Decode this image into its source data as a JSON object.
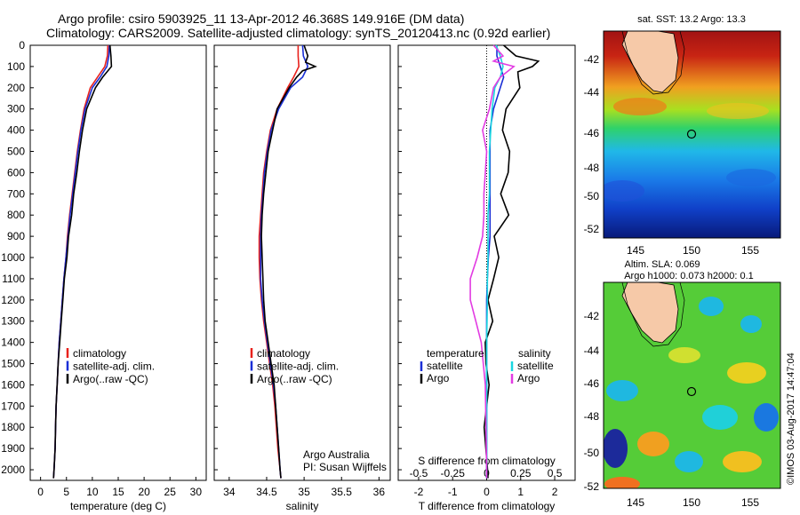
{
  "header": {
    "title_line1": "Argo profile: csiro 5903925_11 13-Apr-2012 46.368S 149.916E (DM data)",
    "title_line2": "Climatology: CARS2009. Satellite-adjusted climatology: synTS_20120413.nc (0.92d earlier)"
  },
  "maps": {
    "sst_title": "sat. SST: 13.2  Argo: 13.3",
    "sla_title1": "Altim. SLA: 0.069",
    "sla_title2": "Argo h1000: 0.073  h2000: 0.1",
    "lat_ticks": [
      "-42",
      "-44",
      "-46",
      "-48",
      "-50",
      "-52"
    ],
    "lon_ticks": [
      "145",
      "150",
      "155"
    ]
  },
  "stamp": "©IMOS 03-Aug-2017 14:47:04",
  "colors": {
    "climatology": "#e8211c",
    "satellite": "#1a2fd6",
    "argo": "#000000",
    "sal_satellite": "#19d6e0",
    "sal_argo": "#e23be2"
  },
  "chart_data": [
    {
      "type": "line",
      "xlabel": "temperature (deg C)",
      "ylabel": "",
      "xlim": [
        -2,
        32
      ],
      "ylim": [
        2050,
        0
      ],
      "xticks": [
        0,
        5,
        10,
        15,
        20,
        25,
        30
      ],
      "yticks": [
        0,
        100,
        200,
        300,
        400,
        500,
        600,
        700,
        800,
        900,
        1000,
        1100,
        1200,
        1300,
        1400,
        1500,
        1600,
        1700,
        1800,
        1900,
        2000
      ],
      "legend": [
        "climatology",
        "satellite-adj. clim.",
        "Argo(..raw -QC)"
      ],
      "series": [
        {
          "name": "climatology",
          "depth": [
            0,
            50,
            100,
            150,
            200,
            300,
            400,
            500,
            600,
            700,
            800,
            900,
            1000,
            1100,
            1200,
            1300,
            1400,
            1500,
            1600,
            1700,
            1800,
            1900,
            2000,
            2040
          ],
          "values": [
            13.0,
            12.9,
            12.4,
            11.0,
            9.6,
            8.4,
            7.7,
            7.1,
            6.6,
            6.1,
            5.6,
            5.2,
            4.9,
            4.5,
            4.2,
            3.9,
            3.6,
            3.4,
            3.2,
            3.0,
            2.9,
            2.8,
            2.6,
            2.5
          ]
        },
        {
          "name": "satellite-adj. clim.",
          "depth": [
            0,
            50,
            100,
            150,
            200,
            300,
            400,
            500,
            600,
            700,
            800,
            900,
            1000,
            1100,
            1200,
            1300,
            1400,
            1500,
            1600,
            1700,
            1800,
            1900,
            2000,
            2040
          ],
          "values": [
            13.3,
            13.2,
            12.8,
            11.5,
            10.0,
            8.6,
            7.8,
            7.2,
            6.7,
            6.2,
            5.7,
            5.3,
            4.9,
            4.5,
            4.2,
            3.9,
            3.6,
            3.4,
            3.2,
            3.0,
            2.9,
            2.8,
            2.6,
            2.5
          ]
        },
        {
          "name": "Argo(..raw -QC)",
          "depth": [
            0,
            50,
            100,
            150,
            200,
            300,
            400,
            500,
            600,
            700,
            800,
            900,
            1000,
            1100,
            1200,
            1300,
            1400,
            1500,
            1600,
            1700,
            1800,
            1900,
            2000,
            2040
          ],
          "values": [
            13.4,
            13.6,
            13.7,
            12.0,
            10.6,
            8.9,
            8.1,
            7.5,
            7.0,
            6.4,
            6.0,
            5.4,
            5.1,
            4.6,
            4.3,
            4.0,
            3.7,
            3.4,
            3.2,
            3.0,
            2.9,
            2.8,
            2.6,
            2.5
          ]
        }
      ]
    },
    {
      "type": "line",
      "xlabel": "salinity",
      "xlim": [
        33.8,
        36.15
      ],
      "ylim": [
        2050,
        0
      ],
      "xticks": [
        34,
        34.5,
        35,
        35.5,
        36
      ],
      "xticklabels": [
        "34",
        "34.5",
        "35",
        "35.5",
        "36"
      ],
      "legend": [
        "climatology",
        "satellite-adj. clim.",
        "Argo(..raw -QC)"
      ],
      "annotation": [
        "Argo Australia",
        "PI: Susan Wijffels"
      ],
      "series": [
        {
          "name": "climatology",
          "depth": [
            0,
            50,
            100,
            150,
            200,
            300,
            400,
            500,
            600,
            700,
            800,
            900,
            1000,
            1100,
            1200,
            1300,
            1400,
            1500,
            1600,
            1700,
            1800,
            1900,
            2000,
            2040
          ],
          "values": [
            34.92,
            34.92,
            34.93,
            34.86,
            34.78,
            34.64,
            34.55,
            34.5,
            34.46,
            34.44,
            34.42,
            34.4,
            34.4,
            34.41,
            34.43,
            34.46,
            34.5,
            34.54,
            34.58,
            34.61,
            34.63,
            34.65,
            34.68,
            34.69
          ]
        },
        {
          "name": "satellite-adj. clim.",
          "depth": [
            0,
            50,
            100,
            150,
            200,
            300,
            400,
            500,
            600,
            700,
            800,
            900,
            1000,
            1100,
            1200,
            1300,
            1400,
            1500,
            1600,
            1700,
            1800,
            1900,
            2000,
            2040
          ],
          "values": [
            34.98,
            34.99,
            35.05,
            34.98,
            34.82,
            34.66,
            34.56,
            34.51,
            34.47,
            34.45,
            34.43,
            34.42,
            34.42,
            34.42,
            34.44,
            34.47,
            34.51,
            34.55,
            34.59,
            34.62,
            34.64,
            34.66,
            34.68,
            34.69
          ]
        },
        {
          "name": "Argo(..raw -QC)",
          "depth": [
            0,
            50,
            80,
            100,
            120,
            150,
            200,
            300,
            400,
            500,
            600,
            700,
            800,
            900,
            1000,
            1100,
            1200,
            1300,
            1400,
            1500,
            1600,
            1700,
            1800,
            1900,
            2000,
            2040
          ],
          "values": [
            35.0,
            35.05,
            35.02,
            35.15,
            34.98,
            34.9,
            34.8,
            34.64,
            34.58,
            34.52,
            34.49,
            34.46,
            34.44,
            34.43,
            34.44,
            34.45,
            34.46,
            34.48,
            34.52,
            34.56,
            34.6,
            34.62,
            34.64,
            34.66,
            34.68,
            34.69
          ]
        }
      ]
    },
    {
      "type": "line",
      "xlabel": "T difference from climatology",
      "xlabel_top": "S difference from climatology",
      "xlim": [
        -2.6,
        2.6
      ],
      "ylim": [
        2050,
        0
      ],
      "xticks": [
        -2,
        -1,
        0,
        1,
        2
      ],
      "top_ticks": [
        "-0.5",
        "-0.25",
        "0",
        "0.25",
        "0.5"
      ],
      "legend_headers": [
        "temperature",
        "salinity"
      ],
      "legend": [
        "satellite",
        "Argo",
        "satellite",
        "Argo"
      ],
      "series": [
        {
          "name": "satellite",
          "depth": [
            0,
            50,
            100,
            150,
            200,
            300,
            400,
            500,
            600,
            700,
            800,
            900,
            1000,
            1100,
            1200,
            1400,
            1600,
            1800,
            2000,
            2040
          ],
          "values": [
            0.3,
            0.3,
            0.4,
            0.5,
            0.4,
            0.2,
            0.1,
            0.1,
            0.1,
            0.1,
            0.1,
            0.1,
            0.05,
            0.02,
            0.0,
            0.0,
            0.0,
            0.0,
            0.0,
            0.0
          ]
        },
        {
          "name": "Argo",
          "depth": [
            0,
            50,
            75,
            100,
            125,
            150,
            200,
            300,
            400,
            500,
            600,
            700,
            800,
            900,
            1000,
            1100,
            1200,
            1300,
            1400,
            1500,
            1600,
            1800,
            2000,
            2040
          ],
          "values": [
            0.5,
            0.8,
            1.6,
            1.3,
            0.9,
            1.0,
            0.9,
            0.6,
            0.5,
            0.6,
            0.7,
            0.4,
            0.6,
            0.3,
            0.3,
            0.2,
            0.1,
            0.1,
            0.0,
            0.0,
            0.0,
            0.0,
            0.0,
            0.0
          ]
        },
        {
          "name": "satellite",
          "depth": [
            0,
            50,
            100,
            150,
            200,
            300,
            400,
            500,
            600,
            700,
            800,
            900,
            1000,
            1100,
            1200,
            1400,
            1600,
            1800,
            2000,
            2040
          ],
          "values": [
            0.07,
            0.1,
            0.12,
            0.1,
            0.06,
            0.04,
            0.03,
            0.02,
            0.02,
            0.02,
            0.01,
            0.01,
            0.01,
            0.005,
            0.005,
            0.0,
            0.0,
            0.0,
            0.0,
            0.0
          ]
        },
        {
          "name": "Argo",
          "depth": [
            0,
            50,
            75,
            100,
            150,
            200,
            300,
            400,
            500,
            600,
            700,
            800,
            900,
            1000,
            1100,
            1200,
            1300,
            1400,
            1600,
            2000,
            2040
          ],
          "values": [
            0.05,
            0.12,
            0.05,
            0.2,
            0.1,
            0.05,
            0.02,
            -0.03,
            0.0,
            -0.01,
            -0.02,
            -0.02,
            -0.03,
            -0.07,
            -0.12,
            -0.12,
            -0.08,
            -0.04,
            -0.01,
            0.0,
            0.0
          ]
        }
      ]
    }
  ]
}
